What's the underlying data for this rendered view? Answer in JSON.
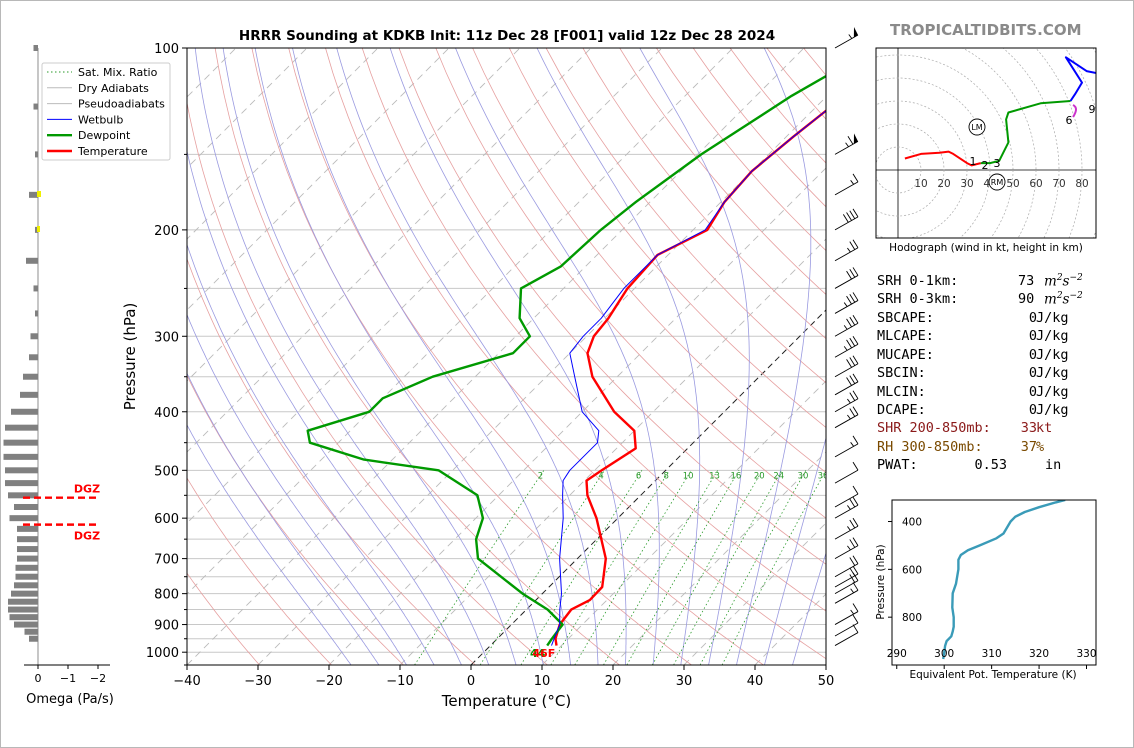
{
  "header": {
    "title": "HRRR Sounding at KDKB Init: 11z Dec 28 [F001] valid 12z Dec 28 2024",
    "site": "TROPICALTIDBITS.COM"
  },
  "colors": {
    "temperature": "#ff0000",
    "dewpoint": "#009900",
    "wetbulb": "#0000ff",
    "dgz": "#ff0000",
    "theta_e": "#3a9bb8",
    "shr": "#8b1a1a",
    "rh": "#7a4a00"
  },
  "chart_data": [
    {
      "type": "line",
      "title": "HRRR Sounding at KDKB Init: 11z Dec 28 [F001] valid 12z Dec 28 2024",
      "xlabel": "Temperature (°C)",
      "ylabel": "Pressure (hPa)",
      "xlim": [
        -40,
        50
      ],
      "ylim": [
        1050,
        100
      ],
      "y_scale": "log",
      "x_ticks": [
        -40,
        -30,
        -20,
        -10,
        0,
        10,
        20,
        30,
        40,
        50
      ],
      "y_ticks": [
        1000,
        900,
        800,
        700,
        600,
        500,
        400,
        300,
        200,
        100
      ],
      "grid": true,
      "legend_position": "top-left",
      "legend": [
        "Sat. Mix. Ratio",
        "Dry Adiabats",
        "Pseudoadiabats",
        "Wetbulb",
        "Dewpoint",
        "Temperature"
      ],
      "mixing_ratio_labels": [
        "2",
        "4",
        "6",
        "8",
        "10",
        "13",
        "16",
        "20",
        "24",
        "30",
        "36"
      ],
      "surface_labels": {
        "dewpoint": "44",
        "temperature": "46F"
      },
      "series": [
        {
          "name": "Temperature",
          "p": [
            975,
            950,
            900,
            850,
            820,
            780,
            700,
            600,
            550,
            520,
            500,
            460,
            430,
            400,
            350,
            320,
            300,
            280,
            250,
            220,
            200,
            180,
            160,
            140,
            120,
            100
          ],
          "t": [
            9.3,
            8.2,
            6.8,
            6.3,
            7.6,
            7.5,
            4,
            -3,
            -7.5,
            -9.7,
            -9,
            -7.3,
            -10,
            -15.5,
            -23.5,
            -27.5,
            -29,
            -29.5,
            -31,
            -31.5,
            -28,
            -29.5,
            -30,
            -29,
            -27.5,
            -26
          ]
        },
        {
          "name": "Dewpoint",
          "p": [
            975,
            950,
            900,
            850,
            800,
            700,
            650,
            600,
            550,
            500,
            480,
            450,
            430,
            400,
            380,
            350,
            320,
            300,
            280,
            250,
            230,
            200,
            180,
            150,
            120,
            100
          ],
          "t": [
            8,
            7.7,
            7.2,
            3,
            -2.8,
            -14,
            -17,
            -19,
            -23,
            -32,
            -44,
            -54,
            -56,
            -50,
            -50,
            -46,
            -38,
            -38,
            -42,
            -46,
            -43.5,
            -43,
            -42,
            -39.5,
            -35,
            -30
          ]
        },
        {
          "name": "Wetbulb",
          "p": [
            975,
            950,
            900,
            850,
            800,
            700,
            600,
            550,
            520,
            500,
            450,
            430,
            400,
            350,
            320,
            300,
            280,
            250,
            220,
            200,
            180,
            160,
            140,
            120,
            100
          ],
          "t": [
            8.6,
            8,
            6.8,
            4.7,
            2.7,
            -2.5,
            -7.7,
            -11,
            -13,
            -13.5,
            -13.5,
            -15,
            -20,
            -26,
            -30,
            -30.5,
            -30.5,
            -31.5,
            -31.5,
            -28.3,
            -29.5,
            -30,
            -29,
            -27.5,
            -26
          ]
        }
      ]
    },
    {
      "type": "line",
      "title": "Hodograph (wind in kt, height in km)",
      "x_ticks": [
        10,
        20,
        30,
        40,
        50,
        60,
        70,
        80
      ],
      "height_labels": [
        "1",
        "2",
        "3",
        "6",
        "9"
      ],
      "markers": [
        "LM",
        "RM"
      ],
      "series": [
        {
          "name": "red",
          "u": [
            3,
            10,
            18,
            22,
            24,
            30,
            32,
            36
          ],
          "v": [
            5,
            7,
            7.5,
            8,
            7,
            3,
            2,
            3
          ]
        },
        {
          "name": "green",
          "u": [
            36,
            40,
            44,
            48,
            47,
            48,
            62,
            75
          ],
          "v": [
            3,
            3,
            4,
            12,
            22,
            25,
            29,
            30
          ]
        },
        {
          "name": "blue",
          "u": [
            75,
            77,
            80,
            73,
            82,
            87
          ],
          "v": [
            30,
            33,
            38,
            49,
            43,
            42
          ]
        }
      ]
    },
    {
      "type": "bar",
      "xlabel": "Omega (Pa/s)",
      "x_ticks": [
        "0",
        "−1",
        "−2"
      ],
      "dgz_label": "DGZ",
      "dgz_pressure": [
        555,
        615
      ],
      "pressure": [
        100,
        125,
        150,
        175,
        200,
        225,
        250,
        275,
        300,
        325,
        350,
        375,
        400,
        425,
        450,
        475,
        500,
        525,
        550,
        575,
        600,
        625,
        650,
        675,
        700,
        725,
        750,
        775,
        800,
        825,
        850,
        875,
        900,
        925,
        950
      ],
      "values": [
        -0.15,
        -0.15,
        -0.1,
        -0.3,
        -0.1,
        -0.4,
        -0.15,
        -0.1,
        -0.25,
        -0.3,
        -0.5,
        -0.6,
        -0.9,
        -1.1,
        -1.15,
        -1.15,
        -1.1,
        -1.1,
        -1.0,
        -0.8,
        -0.95,
        -0.7,
        -0.7,
        -0.7,
        -0.7,
        -0.75,
        -0.75,
        -0.8,
        -0.9,
        -1.0,
        -1.0,
        -0.95,
        -0.8,
        -0.45,
        -0.3
      ]
    },
    {
      "type": "line",
      "xlabel": "Equivalent Pot. Temperature (K)",
      "ylabel": "Pressure (hPa)",
      "x_ticks": [
        290,
        300,
        310,
        320,
        330
      ],
      "y_ticks": [
        400,
        600,
        800
      ],
      "xlim": [
        289,
        332
      ],
      "ylim": [
        1000,
        310
      ],
      "series": [
        {
          "name": "theta_e",
          "p": [
            975,
            950,
            920,
            900,
            880,
            860,
            840,
            800,
            760,
            700,
            660,
            600,
            560,
            540,
            520,
            500,
            470,
            450,
            400,
            380,
            360,
            340,
            320,
            310
          ],
          "t": [
            299.8,
            300,
            300.2,
            300.5,
            301.5,
            301.8,
            302,
            302,
            301.7,
            301.8,
            302.5,
            303,
            303,
            303.5,
            305,
            307.5,
            311,
            312.5,
            314,
            315,
            317,
            320,
            323.5,
            325.5
          ]
        }
      ]
    }
  ],
  "stats": {
    "srh1": {
      "label": "SRH 0-1km:",
      "value": "73",
      "unit_base": "m",
      "unit_sup1": "2",
      "unit_mid": "s",
      "unit_sup2": "−2"
    },
    "srh3": {
      "label": "SRH 0-3km:",
      "value": "90",
      "unit_base": "m",
      "unit_sup1": "2",
      "unit_mid": "s",
      "unit_sup2": "−2"
    },
    "rows": [
      {
        "label": "SBCAPE:",
        "value": "0",
        "unit": "J/kg"
      },
      {
        "label": "MLCAPE:",
        "value": "0",
        "unit": "J/kg"
      },
      {
        "label": "MUCAPE:",
        "value": "0",
        "unit": "J/kg"
      },
      {
        "label": "SBCIN:",
        "value": "0",
        "unit": "J/kg"
      },
      {
        "label": "MLCIN:",
        "value": "0",
        "unit": "J/kg"
      },
      {
        "label": "DCAPE:",
        "value": "0",
        "unit": "J/kg"
      },
      {
        "label": "SHR 200-850mb:",
        "value": "33",
        "unit": "kt"
      },
      {
        "label": "RH 300-850mb:",
        "value": "37",
        "unit": "%"
      },
      {
        "label": "PWAT:",
        "value": "0.53",
        "unit": "in"
      }
    ]
  },
  "winds": [
    {
      "p": 100,
      "spd": 55
    },
    {
      "p": 150,
      "spd": 65
    },
    {
      "p": 175,
      "spd": 15
    },
    {
      "p": 200,
      "spd": 40
    },
    {
      "p": 225,
      "spd": 25
    },
    {
      "p": 250,
      "spd": 30
    },
    {
      "p": 275,
      "spd": 35
    },
    {
      "p": 300,
      "spd": 35
    },
    {
      "p": 325,
      "spd": 35
    },
    {
      "p": 350,
      "spd": 30
    },
    {
      "p": 375,
      "spd": 30
    },
    {
      "p": 400,
      "spd": 25
    },
    {
      "p": 425,
      "spd": 25
    },
    {
      "p": 475,
      "spd": 15
    },
    {
      "p": 525,
      "spd": 10
    },
    {
      "p": 575,
      "spd": 10
    },
    {
      "p": 600,
      "spd": 25
    },
    {
      "p": 650,
      "spd": 25
    },
    {
      "p": 700,
      "spd": 25
    },
    {
      "p": 750,
      "spd": 20
    },
    {
      "p": 780,
      "spd": 20
    },
    {
      "p": 800,
      "spd": 20
    },
    {
      "p": 830,
      "spd": 15
    },
    {
      "p": 900,
      "spd": 15
    },
    {
      "p": 940,
      "spd": 10
    },
    {
      "p": 975,
      "spd": 10
    }
  ]
}
